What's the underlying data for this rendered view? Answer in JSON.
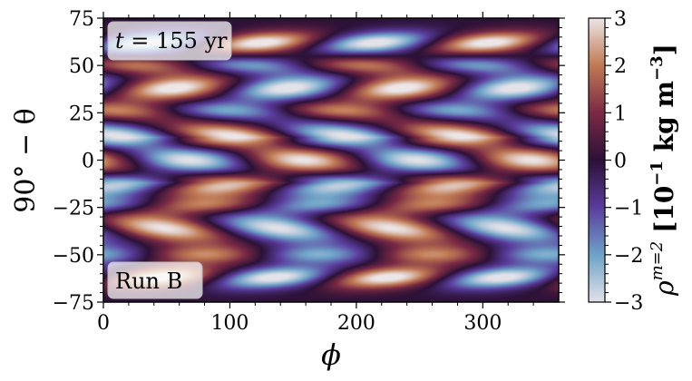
{
  "chart_data": {
    "type": "heatmap",
    "title": "",
    "xlabel": "ϕ",
    "ylabel": "90° − θ",
    "xlim": [
      0,
      360
    ],
    "ylim": [
      -75,
      75
    ],
    "xticks": [
      "0",
      "100",
      "200",
      "300"
    ],
    "yticks": [
      "−75",
      "−50",
      "−25",
      "0",
      "25",
      "50",
      "75"
    ],
    "colorbar": {
      "label": "ρ^{m=2} [10^{−1} kg m^{−3}]",
      "label_parts": {
        "rho": "ρ",
        "sup": "m=2",
        "units": "[10",
        "exp": "−1",
        "units2": " kg m",
        "exp2": "−3",
        "close": "]"
      },
      "range": [
        -3,
        3
      ],
      "ticks": [
        "3",
        "2",
        "1",
        "0",
        "−1",
        "−2",
        "−3"
      ],
      "colormap": "twilight-like",
      "colors": {
        "max": "#ece6e6",
        "high": "#c07a54",
        "mid_high": "#7a2a44",
        "zero": "#2c1137",
        "mid_low": "#5a3d9e",
        "low": "#6fa3c8",
        "min": "#e2e2e8"
      }
    },
    "pattern": {
      "azimuthal_mode": 2,
      "description_values": {
        "bands_latitude_deg": [
          65,
          38,
          12,
          0,
          -12,
          -38,
          -62
        ],
        "band_sign": [
          1,
          1,
          -1,
          1,
          -1,
          1,
          1
        ]
      }
    },
    "annotations": {
      "time": {
        "t_symbol": "t",
        "text": " = 155 yr"
      },
      "run": "Run B"
    }
  }
}
